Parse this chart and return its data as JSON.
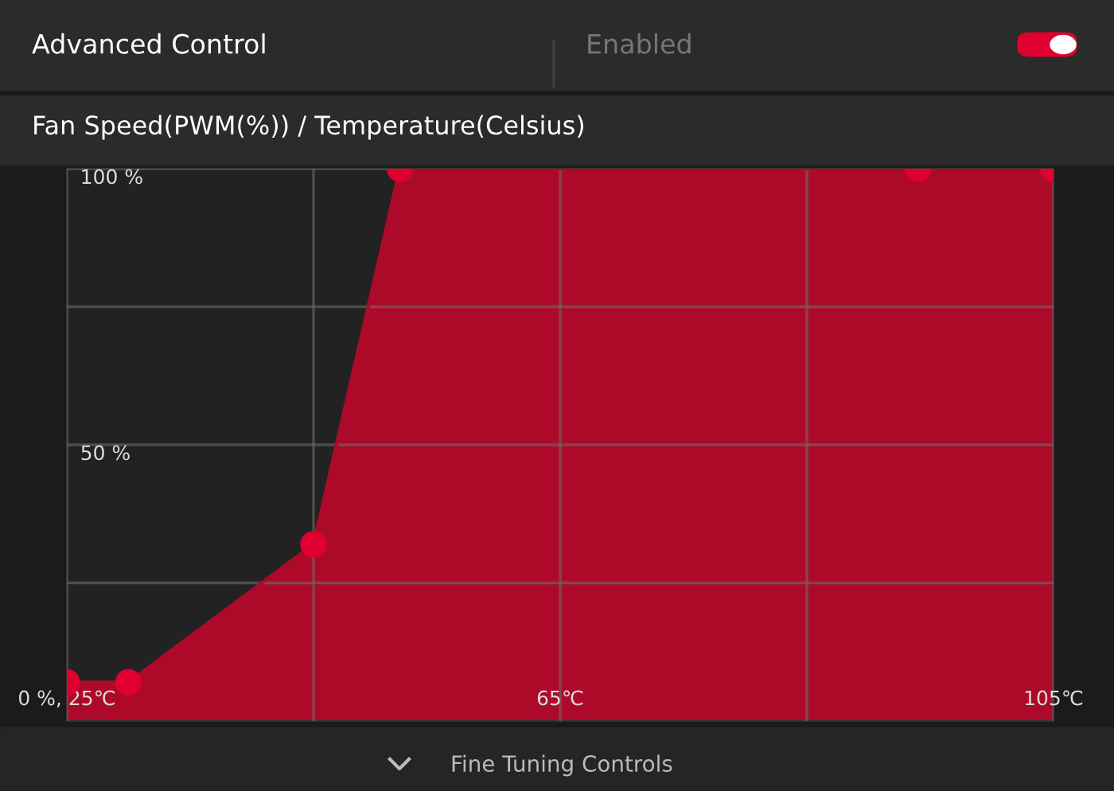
{
  "chart_data": {
    "type": "area",
    "title": "Fan Speed(PWM(%)) / Temperature(Celsius)",
    "annotations": [
      "Advanced Control",
      "Enabled",
      "Fine Tuning Controls"
    ],
    "series": [
      {
        "color": "#ad0a2a",
        "x": [
          25,
          30,
          45,
          52,
          94,
          105
        ],
        "values": [
          7,
          7,
          32,
          100,
          100,
          100
        ]
      }
    ],
    "xlim": [
      25,
      105
    ],
    "xticks": [
      {
        "value": 25,
        "label": "0 %, 25℃"
      },
      {
        "value": 45,
        "label": null
      },
      {
        "value": 65,
        "label": "65℃"
      },
      {
        "value": 85,
        "label": null
      },
      {
        "value": 105,
        "label": "105℃"
      }
    ],
    "ylim": [
      0,
      100
    ],
    "yticks": [
      {
        "value": 25,
        "label": null
      },
      {
        "value": 50,
        "label": "50 %"
      },
      {
        "value": 75,
        "label": null
      },
      {
        "value": 100,
        "label": "100 %"
      }
    ],
    "grid": true,
    "marker": "circle"
  }
}
